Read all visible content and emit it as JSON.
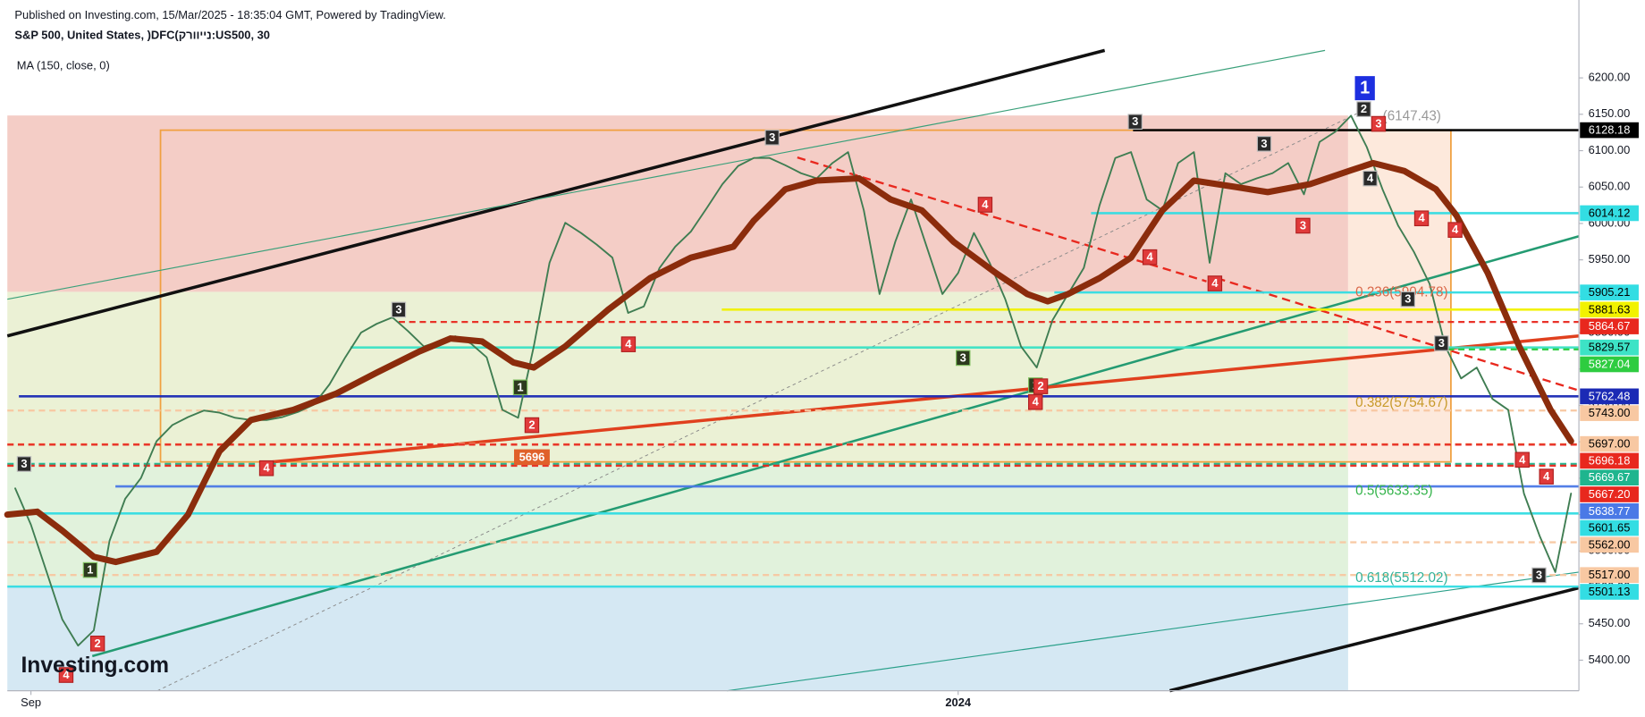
{
  "chart_data": {
    "type": "line",
    "published": "Published on Investing.com, 15/Mar/2025 - 18:35:04 GMT, Powered by TradingView.",
    "title": "S&P 500, United States, )DFC(קרוויינ:US500, 30",
    "logo": "Investing.com",
    "categories": [
      null,
      "Sep",
      null,
      null,
      null,
      null,
      null,
      null,
      null,
      null,
      null,
      null,
      null,
      null,
      null,
      null,
      null,
      null,
      null,
      null,
      null,
      null,
      null,
      null,
      null,
      null,
      null,
      null,
      null,
      null,
      null,
      null,
      null,
      null,
      null,
      null,
      null,
      null,
      null,
      null,
      null,
      null,
      null,
      null,
      null,
      null,
      null,
      null,
      null,
      null,
      null,
      null,
      null,
      null,
      null,
      null,
      null,
      null,
      null,
      null,
      "2024",
      null,
      null,
      null,
      null,
      null,
      null,
      null,
      null,
      null,
      null,
      null,
      null,
      null,
      null,
      null,
      null,
      null,
      null,
      null,
      null,
      null,
      null,
      null,
      null,
      null,
      null,
      null,
      null,
      null,
      null,
      null,
      null,
      null,
      null,
      null,
      null,
      null,
      null,
      null
    ],
    "series": [
      {
        "color": "#3f7d52",
        "values": [
          5636,
          5586,
          5521,
          5456,
          5420,
          5441,
          5564,
          5622,
          5650,
          5701,
          5723,
          5734,
          5743,
          5740,
          5733,
          5730,
          5730,
          5734,
          5741,
          5751,
          5779,
          5816,
          5850,
          5862,
          5871,
          5852,
          5831,
          5838,
          5845,
          5835,
          5816,
          5744,
          5733,
          5831,
          5946,
          6001,
          5987,
          5971,
          5953,
          5877,
          5886,
          5939,
          5968,
          5989,
          6021,
          6054,
          6079,
          6090,
          6090,
          6080,
          6069,
          6062,
          6083,
          6098,
          6018,
          5903,
          5975,
          6033,
          5968,
          5903,
          5932,
          5987,
          5946,
          5896,
          5831,
          5802,
          5867,
          5903,
          5939,
          6025,
          6090,
          6098,
          6033,
          6018,
          6083,
          6098,
          5946,
          6069,
          6054,
          6062,
          6069,
          6083,
          6040,
          6112,
          6126,
          6148,
          6105,
          6047,
          5997,
          5961,
          5917,
          5831,
          5787,
          5802,
          5759,
          5744,
          5629,
          5571,
          5521,
          5629
        ]
      },
      {
        "name": "MA (150, close, 0)",
        "color": "#8b2c0c",
        "x": [
          -0.5,
          1.4,
          3,
          5,
          6.4,
          9,
          11,
          13,
          15,
          17.7,
          20.4,
          23,
          25.7,
          27.7,
          29.7,
          31.7,
          33,
          35,
          37.7,
          40.4,
          43,
          45.7,
          47,
          49,
          51,
          53.7,
          55.7,
          57.7,
          59.7,
          62.4,
          64.4,
          65.7,
          67,
          69,
          71,
          73,
          75,
          77.7,
          79.7,
          82.4,
          85,
          86.4,
          88.4,
          90.4,
          91.7,
          93.7,
          95.7,
          97.7,
          99
        ],
        "values": [
          5600,
          5604,
          5578,
          5542,
          5535,
          5549,
          5600,
          5687,
          5730,
          5744,
          5766,
          5795,
          5824,
          5842,
          5838,
          5809,
          5802,
          5831,
          5881,
          5925,
          5953,
          5968,
          6004,
          6047,
          6059,
          6062,
          6033,
          6018,
          5975,
          5932,
          5903,
          5893,
          5903,
          5925,
          5953,
          6018,
          6059,
          6050,
          6043,
          6054,
          6073,
          6083,
          6072,
          6047,
          6011,
          5932,
          5831,
          5744,
          5701
        ]
      }
    ],
    "ylim": [
      5358,
      6307
    ],
    "yticks": [
      {
        "value": 5400,
        "label": "5400.00"
      },
      {
        "value": 5450,
        "label": "5450.00"
      },
      {
        "value": 5500,
        "label": "5500.00"
      },
      {
        "value": 5550,
        "label": "5550.00"
      },
      {
        "value": 5600,
        "label": "5600.00"
      },
      {
        "value": 5650,
        "label": "5650.00"
      },
      {
        "value": 5700,
        "label": "5700.00"
      },
      {
        "value": 5750,
        "label": "5750.00"
      },
      {
        "value": 5800,
        "label": "5800.00"
      },
      {
        "value": 5850,
        "label": "5850.00"
      },
      {
        "value": 5900,
        "label": "5900.00"
      },
      {
        "value": 5950,
        "label": "5950.00"
      },
      {
        "value": 6000,
        "label": "6000.00"
      },
      {
        "value": 6050,
        "label": "6050.00"
      },
      {
        "value": 6100,
        "label": "6100.00"
      },
      {
        "value": 6150,
        "label": "6150.00"
      },
      {
        "value": 6200,
        "label": "6200.00"
      }
    ],
    "levels": [
      {
        "value": 6128.18,
        "label": "6128.18",
        "color": "#000000",
        "dash": false
      },
      {
        "value": 6014.12,
        "label": "6014.12",
        "color": "#33dde3",
        "dash": false
      },
      {
        "value": 5905.21,
        "label": "5905.21",
        "color": "#33dde3",
        "dash": false
      },
      {
        "value": 5881.63,
        "label": "5881.63",
        "color": "#f2f200",
        "dash": false
      },
      {
        "value": 5864.67,
        "label": "5864.67",
        "color": "#e8281e",
        "dash": true
      },
      {
        "value": 5829.57,
        "label": "5829.57",
        "color": "#3de3c6",
        "dash": false
      },
      {
        "value": 5827.04,
        "label": "5827.04",
        "color": "#2ecc40",
        "dash": true
      },
      {
        "value": 5762.48,
        "label": "5762.48",
        "color": "#1b2ab5",
        "dash": false
      },
      {
        "value": 5743.0,
        "label": "5743.00",
        "color": "#f8c8a2",
        "dash": true
      },
      {
        "value": 5697.0,
        "label": "5697.00",
        "color": "#f8c8a2",
        "dash": true
      },
      {
        "value": 5696.18,
        "label": "5696.18",
        "color": "#e8281e",
        "dash": true
      },
      {
        "value": 5669.67,
        "label": "5669.67",
        "color": "#1fb58e",
        "dash": true
      },
      {
        "value": 5667.2,
        "label": "5667.20",
        "color": "#e8281e",
        "dash": true
      },
      {
        "value": 5638.77,
        "label": "5638.77",
        "color": "#4a79e6",
        "dash": false
      },
      {
        "value": 5601.65,
        "label": "5601.65",
        "color": "#33dde3",
        "dash": false
      },
      {
        "value": 5562.0,
        "label": "5562.00",
        "color": "#f8c8a2",
        "dash": true
      },
      {
        "value": 5517.0,
        "label": "5517.00",
        "color": "#f8c8a2",
        "dash": true
      },
      {
        "value": 5501.13,
        "label": "5501.13",
        "color": "#33dde3",
        "dash": false
      }
    ],
    "annotations": [
      "0.236(5904.78)",
      "0.382(5754.67)",
      "0.5(5633.35)",
      "0.618(5512.02)",
      "(6147.43)",
      "5696"
    ],
    "wave_labels": [
      "3",
      "1",
      "2",
      "4",
      "3",
      "4",
      "1",
      "2",
      "4",
      "3",
      "3",
      "1",
      "2",
      "4",
      "4",
      "4",
      "4",
      "3",
      "3",
      "3",
      "2",
      "3",
      "1",
      "4",
      "4",
      "4",
      "3",
      "3",
      "4",
      "4",
      "3"
    ]
  }
}
